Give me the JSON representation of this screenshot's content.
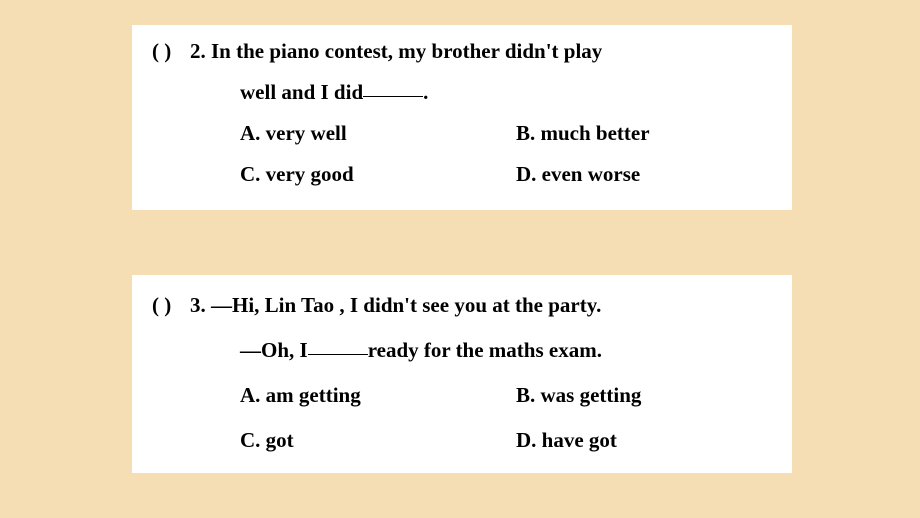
{
  "background_color": "#f5deb3",
  "box_color": "#ffffff",
  "text_color": "#000000",
  "font_weight": "bold",
  "font_size_pt": 16,
  "questions": [
    {
      "paren": "(       )",
      "number": "2.",
      "text_line1": "In the piano contest, my brother didn't play",
      "text_line2a": "well and I did ",
      "text_line2b": ".",
      "options": {
        "A": "A. very well",
        "B": "B. much better",
        "C": "C. very good",
        "D": "D. even worse"
      }
    },
    {
      "paren": "(       )",
      "number": "3.",
      "dash1": "—",
      "text_line1": "Hi, Lin Tao , I didn't see you at the party.",
      "dash2": "—",
      "text_line2a": "Oh, I ",
      "text_line2b": " ready for the maths exam.",
      "options": {
        "A": "A. am getting",
        "B": "B. was getting",
        "C": "C. got",
        "D": "D. have got"
      }
    }
  ]
}
